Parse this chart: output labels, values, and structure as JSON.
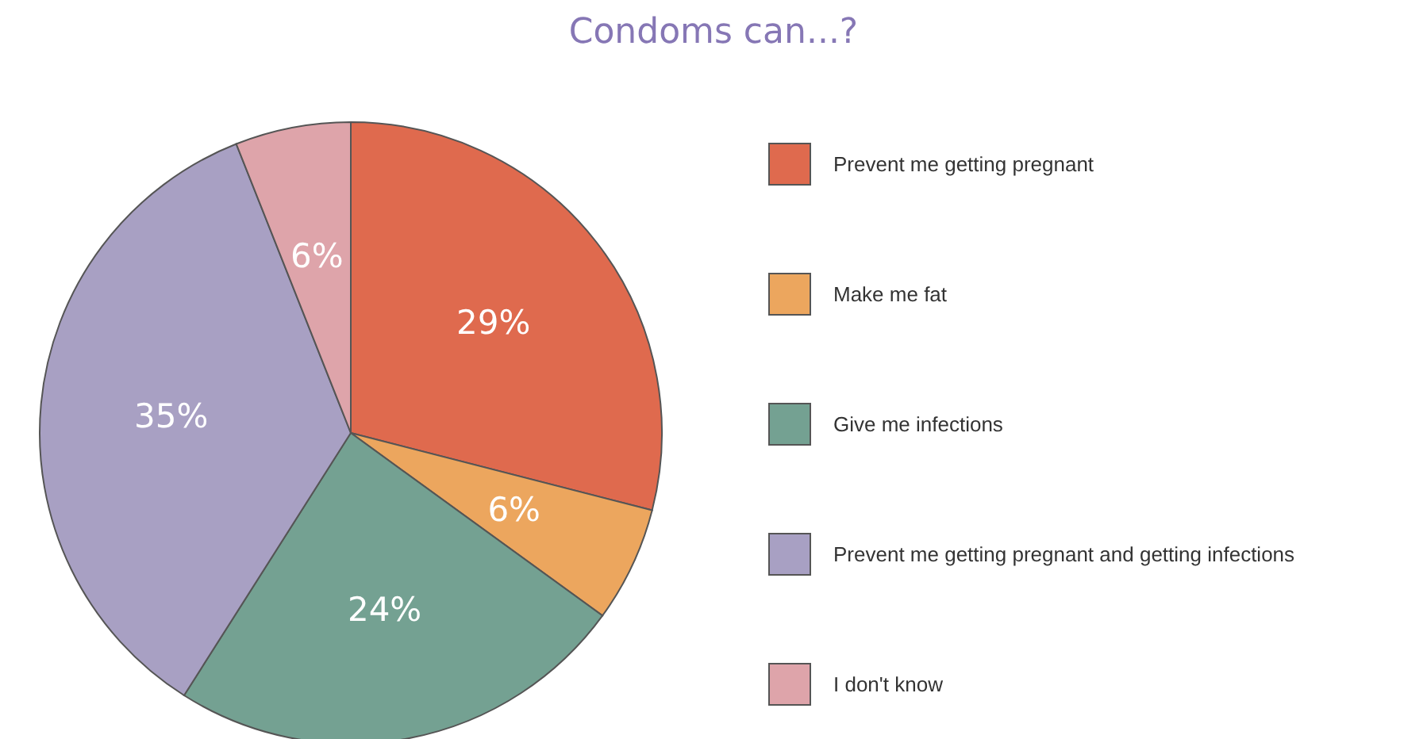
{
  "chart_data": {
    "type": "pie",
    "title": "Condoms can...?",
    "categories": [
      "Prevent me getting pregnant",
      "Make me fat",
      "Give me infections",
      "Prevent me getting pregnant and getting infections",
      "I don't know"
    ],
    "values": [
      29,
      6,
      24,
      35,
      6
    ],
    "colors": [
      "#df6a4e",
      "#eca65e",
      "#74a192",
      "#a8a0c3",
      "#dea4aa"
    ],
    "value_labels": [
      "29%",
      "6%",
      "24%",
      "35%",
      "6%"
    ],
    "legend": "right"
  }
}
